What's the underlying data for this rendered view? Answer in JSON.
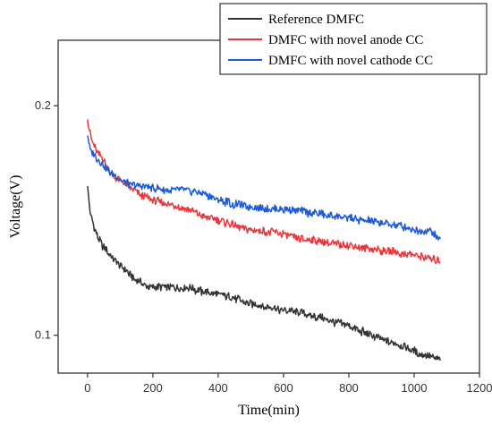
{
  "chart_data": {
    "type": "line",
    "title": "",
    "xlabel": "Time(min)",
    "ylabel": "Voltage(V)",
    "xlim": [
      -90,
      1200
    ],
    "ylim": [
      0.0835,
      0.2285
    ],
    "xticks": [
      0,
      200,
      400,
      600,
      800,
      1000,
      1200
    ],
    "xtick_labels": [
      "0",
      "200",
      "400",
      "600",
      "800",
      "1000",
      "1200"
    ],
    "yticks": [
      0.1,
      0.2
    ],
    "ytick_labels": [
      "0.1",
      "0.2"
    ],
    "grid": false,
    "legend": "top-right",
    "series": [
      {
        "name": "Reference DMFC",
        "color": "#333333",
        "x": [
          0,
          5,
          10,
          20,
          30,
          50,
          75,
          100,
          125,
          150,
          175,
          200,
          225,
          250,
          275,
          300,
          325,
          350,
          400,
          450,
          500,
          550,
          600,
          650,
          700,
          750,
          800,
          850,
          900,
          950,
          1000,
          1040,
          1060,
          1080
        ],
        "y": [
          0.165,
          0.158,
          0.152,
          0.147,
          0.143,
          0.138,
          0.134,
          0.13,
          0.127,
          0.124,
          0.122,
          0.121,
          0.121,
          0.121,
          0.121,
          0.121,
          0.12,
          0.119,
          0.118,
          0.116,
          0.114,
          0.112,
          0.111,
          0.11,
          0.108,
          0.106,
          0.104,
          0.101,
          0.098,
          0.096,
          0.093,
          0.091,
          0.09,
          0.089
        ]
      },
      {
        "name": "DMFC with novel anode CC",
        "color": "#e8383d",
        "x": [
          0,
          5,
          10,
          20,
          30,
          50,
          75,
          100,
          125,
          150,
          175,
          200,
          250,
          300,
          350,
          400,
          450,
          500,
          550,
          600,
          650,
          700,
          750,
          800,
          850,
          900,
          950,
          1000,
          1050,
          1080
        ],
        "y": [
          0.194,
          0.19,
          0.186,
          0.183,
          0.18,
          0.176,
          0.17,
          0.167,
          0.165,
          0.162,
          0.16,
          0.159,
          0.157,
          0.155,
          0.152,
          0.15,
          0.148,
          0.146,
          0.145,
          0.144,
          0.142,
          0.141,
          0.14,
          0.139,
          0.138,
          0.137,
          0.136,
          0.135,
          0.133,
          0.132
        ]
      },
      {
        "name": "DMFC with novel cathode CC",
        "color": "#1e5ad6",
        "x": [
          0,
          5,
          10,
          20,
          30,
          50,
          75,
          100,
          125,
          150,
          175,
          200,
          250,
          300,
          350,
          400,
          450,
          500,
          550,
          600,
          650,
          700,
          750,
          800,
          850,
          900,
          950,
          1000,
          1050,
          1080
        ],
        "y": [
          0.187,
          0.183,
          0.18,
          0.179,
          0.177,
          0.174,
          0.17,
          0.168,
          0.166,
          0.165,
          0.165,
          0.164,
          0.163,
          0.163,
          0.162,
          0.159,
          0.157,
          0.156,
          0.155,
          0.155,
          0.154,
          0.153,
          0.152,
          0.151,
          0.15,
          0.149,
          0.148,
          0.146,
          0.145,
          0.142
        ]
      }
    ]
  }
}
